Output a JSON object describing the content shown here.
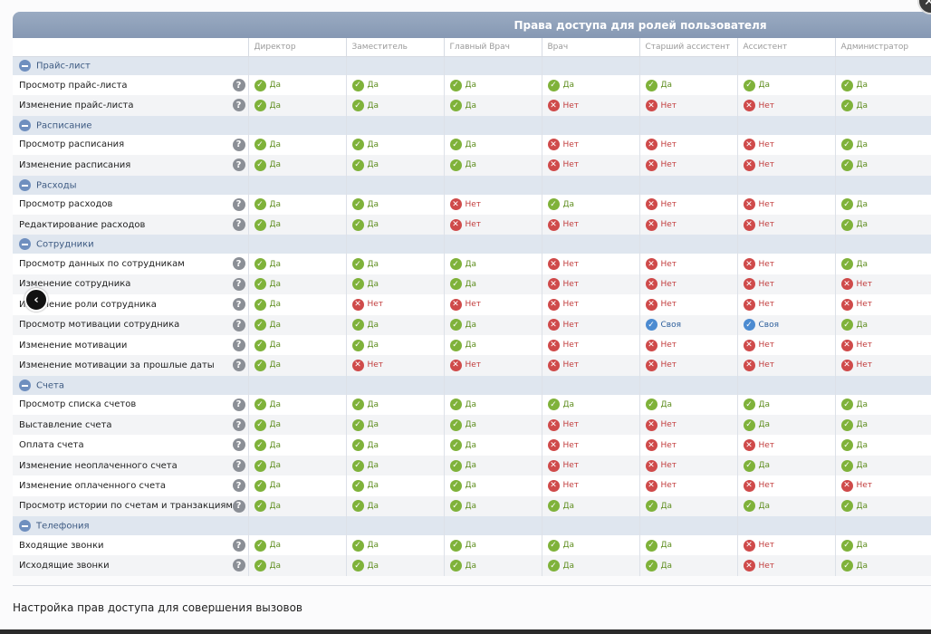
{
  "title": "Права доступа для ролей пользователя",
  "caption": "Настройка прав доступа для совершения вызовов",
  "roles": [
    "Директор",
    "Заместитель",
    "Главный Врач",
    "Врач",
    "Старший ассистент",
    "Ассистент",
    "Администратор"
  ],
  "labels": {
    "yes": "Да",
    "no": "Нет",
    "own": "Своя"
  },
  "icons": {
    "group": "minus-circle-icon",
    "help": "question-icon",
    "prev": "chevron-left-icon",
    "close": "close-icon"
  },
  "colors": {
    "header": "#8698b3",
    "group_bg": "#dfe6ef",
    "yes": "#7fb23a",
    "no": "#cf4a4a",
    "own": "#4c8bd1"
  },
  "groups": [
    {
      "name": "Прайс-лист",
      "rows": [
        {
          "name": "Просмотр прайс-листа",
          "values": [
            "yes",
            "yes",
            "yes",
            "yes",
            "yes",
            "yes",
            "yes"
          ]
        },
        {
          "name": "Изменение прайс-листа",
          "values": [
            "yes",
            "yes",
            "yes",
            "no",
            "no",
            "no",
            "yes"
          ]
        }
      ]
    },
    {
      "name": "Расписание",
      "rows": [
        {
          "name": "Просмотр расписания",
          "values": [
            "yes",
            "yes",
            "yes",
            "no",
            "no",
            "no",
            "yes"
          ]
        },
        {
          "name": "Изменение расписания",
          "values": [
            "yes",
            "yes",
            "yes",
            "no",
            "no",
            "no",
            "yes"
          ]
        }
      ]
    },
    {
      "name": "Расходы",
      "rows": [
        {
          "name": "Просмотр расходов",
          "values": [
            "yes",
            "yes",
            "no",
            "yes",
            "no",
            "no",
            "yes"
          ]
        },
        {
          "name": "Редактирование расходов",
          "values": [
            "yes",
            "yes",
            "no",
            "no",
            "no",
            "no",
            "yes"
          ]
        }
      ]
    },
    {
      "name": "Сотрудники",
      "rows": [
        {
          "name": "Просмотр данных по сотрудникам",
          "values": [
            "yes",
            "yes",
            "yes",
            "no",
            "no",
            "no",
            "yes"
          ]
        },
        {
          "name": "Изменение сотрудника",
          "values": [
            "yes",
            "yes",
            "yes",
            "no",
            "no",
            "no",
            "no"
          ]
        },
        {
          "name": "Изменение роли сотрудника",
          "values": [
            "yes",
            "no",
            "no",
            "no",
            "no",
            "no",
            "no"
          ]
        },
        {
          "name": "Просмотр мотивации сотрудника",
          "values": [
            "yes",
            "yes",
            "yes",
            "no",
            "own",
            "own",
            "yes"
          ]
        },
        {
          "name": "Изменение мотивации",
          "values": [
            "yes",
            "yes",
            "yes",
            "no",
            "no",
            "no",
            "no"
          ]
        },
        {
          "name": "Изменение мотивации за прошлые даты",
          "values": [
            "yes",
            "no",
            "no",
            "no",
            "no",
            "no",
            "no"
          ]
        }
      ]
    },
    {
      "name": "Счета",
      "rows": [
        {
          "name": "Просмотр списка счетов",
          "values": [
            "yes",
            "yes",
            "yes",
            "yes",
            "yes",
            "yes",
            "yes"
          ]
        },
        {
          "name": "Выставление счета",
          "values": [
            "yes",
            "yes",
            "yes",
            "no",
            "no",
            "yes",
            "yes"
          ]
        },
        {
          "name": "Оплата счета",
          "values": [
            "yes",
            "yes",
            "yes",
            "no",
            "no",
            "no",
            "yes"
          ]
        },
        {
          "name": "Изменение неоплаченного счета",
          "values": [
            "yes",
            "yes",
            "yes",
            "no",
            "no",
            "yes",
            "yes"
          ]
        },
        {
          "name": "Изменение оплаченного счета",
          "values": [
            "yes",
            "yes",
            "yes",
            "no",
            "no",
            "no",
            "no"
          ]
        },
        {
          "name": "Просмотр истории по счетам и транзакциям",
          "values": [
            "yes",
            "yes",
            "yes",
            "yes",
            "yes",
            "yes",
            "yes"
          ]
        }
      ]
    },
    {
      "name": "Телефония",
      "rows": [
        {
          "name": "Входящие звонки",
          "values": [
            "yes",
            "yes",
            "yes",
            "yes",
            "yes",
            "no",
            "yes"
          ]
        },
        {
          "name": "Исходящие звонки",
          "values": [
            "yes",
            "yes",
            "yes",
            "yes",
            "yes",
            "no",
            "yes"
          ]
        }
      ]
    }
  ]
}
